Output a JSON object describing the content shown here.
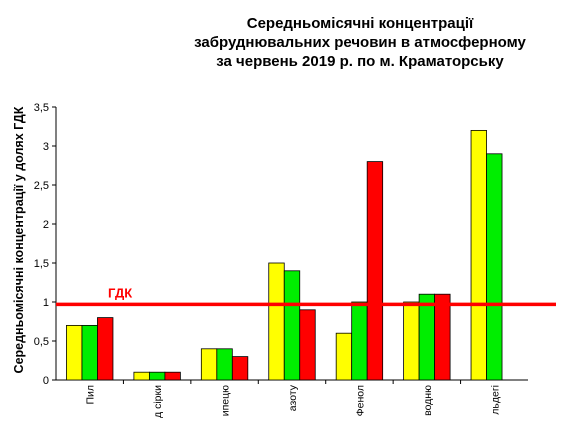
{
  "chart_data": {
    "type": "bar",
    "title_lines": [
      "Середньомісячні  концентрації",
      "забруднювальних  речовин  в атмосферному",
      "за червень 2019 р. по м. Краматорську"
    ],
    "ylabel": "Середньомісячні концентрації  у  долях ГДК",
    "xlabel": "",
    "ylim": [
      0,
      3.5
    ],
    "yticks": [
      "0",
      "0,5",
      "1",
      "1,5",
      "2",
      "2,5",
      "3",
      "3,5"
    ],
    "categories": [
      "Пил",
      "д сірки",
      "ипецю",
      "азоту",
      "Фенол",
      "водню",
      "льдегі"
    ],
    "series": [
      {
        "color": "#ffff00",
        "values": [
          0.7,
          0.1,
          0.4,
          1.5,
          0.6,
          1.0,
          3.2
        ]
      },
      {
        "color": "#00ee00",
        "values": [
          0.7,
          0.1,
          0.4,
          1.4,
          1.0,
          1.1,
          2.9
        ]
      },
      {
        "color": "#ff0000",
        "values": [
          0.8,
          0.1,
          0.3,
          0.9,
          2.8,
          1.1,
          null
        ]
      }
    ],
    "reference_line": {
      "value": 0.97,
      "label": "ГДК",
      "color": "#ff0000"
    },
    "grid": false,
    "legend": "none"
  }
}
